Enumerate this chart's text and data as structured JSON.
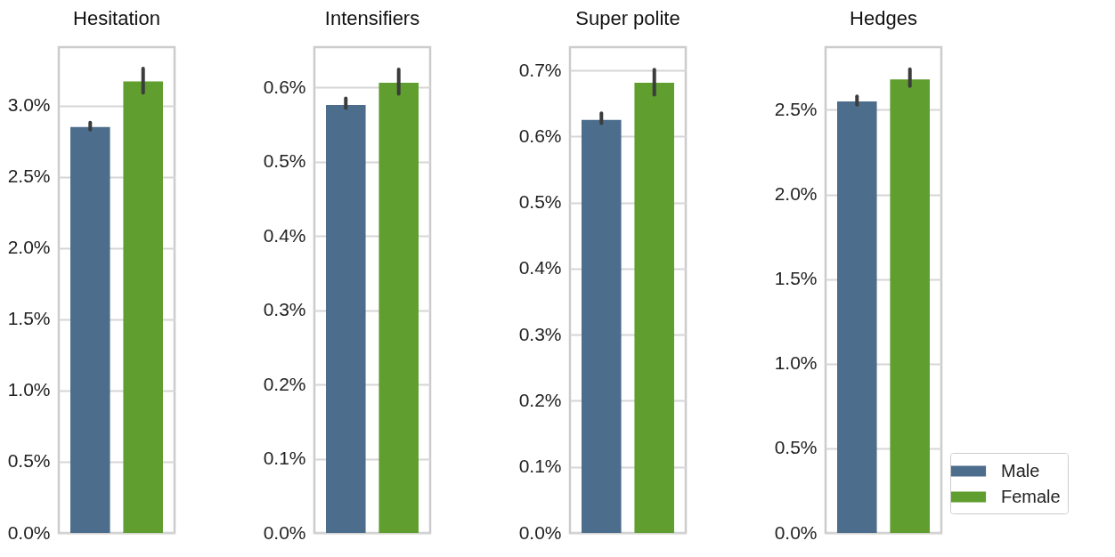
{
  "chart_data": [
    {
      "type": "bar",
      "title": "Hesitation",
      "categories": [
        null
      ],
      "grid": "y",
      "tick_labels": "y",
      "legend": false,
      "ylim": [
        0,
        3.41
      ],
      "yticks": [
        {
          "value": 0,
          "label": "0.0%"
        },
        {
          "value": 0.5,
          "label": "0.5%"
        },
        {
          "value": 1.0,
          "label": "1.0%"
        },
        {
          "value": 1.5,
          "label": "1.5%"
        },
        {
          "value": 2.0,
          "label": "2.0%"
        },
        {
          "value": 2.5,
          "label": "2.5%"
        },
        {
          "value": 3.0,
          "label": "3.0%"
        }
      ],
      "series": [
        {
          "color": "#4c6d8c",
          "values": [
            2.85
          ],
          "errors": [
            [
              2.83,
              2.88
            ]
          ]
        },
        {
          "color": "#5f9e2f",
          "values": [
            3.17
          ],
          "errors": [
            [
              3.09,
              3.26
            ]
          ]
        }
      ]
    },
    {
      "type": "bar",
      "title": "Intensifiers",
      "categories": [
        null
      ],
      "grid": "y",
      "tick_labels": "y",
      "legend": false,
      "ylim": [
        0,
        0.654
      ],
      "yticks": [
        {
          "value": 0,
          "label": "0.0%"
        },
        {
          "value": 0.1,
          "label": "0.1%"
        },
        {
          "value": 0.2,
          "label": "0.2%"
        },
        {
          "value": 0.3,
          "label": "0.3%"
        },
        {
          "value": 0.4,
          "label": "0.4%"
        },
        {
          "value": 0.5,
          "label": "0.5%"
        },
        {
          "value": 0.6,
          "label": "0.6%"
        }
      ],
      "series": [
        {
          "color": "#4c6d8c",
          "values": [
            0.576
          ],
          "errors": [
            [
              0.572,
              0.585
            ]
          ]
        },
        {
          "color": "#5f9e2f",
          "values": [
            0.606
          ],
          "errors": [
            [
              0.591,
              0.624
            ]
          ]
        }
      ]
    },
    {
      "type": "bar",
      "title": "Super polite",
      "categories": [
        null
      ],
      "grid": "y",
      "tick_labels": "y",
      "legend": false,
      "ylim": [
        0,
        0.735
      ],
      "yticks": [
        {
          "value": 0,
          "label": "0.0%"
        },
        {
          "value": 0.1,
          "label": "0.1%"
        },
        {
          "value": 0.2,
          "label": "0.2%"
        },
        {
          "value": 0.3,
          "label": "0.3%"
        },
        {
          "value": 0.4,
          "label": "0.4%"
        },
        {
          "value": 0.5,
          "label": "0.5%"
        },
        {
          "value": 0.6,
          "label": "0.6%"
        },
        {
          "value": 0.7,
          "label": "0.7%"
        }
      ],
      "series": [
        {
          "color": "#4c6d8c",
          "values": [
            0.625
          ],
          "errors": [
            [
              0.62,
              0.635
            ]
          ]
        },
        {
          "color": "#5f9e2f",
          "values": [
            0.681
          ],
          "errors": [
            [
              0.663,
              0.701
            ]
          ]
        }
      ]
    },
    {
      "type": "bar",
      "title": "Hedges",
      "categories": [
        null
      ],
      "grid": "y",
      "tick_labels": "y",
      "legend": "bottom right",
      "ylim": [
        0,
        2.87
      ],
      "yticks": [
        {
          "value": 0,
          "label": "0.0%"
        },
        {
          "value": 0.5,
          "label": "0.5%"
        },
        {
          "value": 1.0,
          "label": "1.0%"
        },
        {
          "value": 1.5,
          "label": "1.5%"
        },
        {
          "value": 2.0,
          "label": "2.0%"
        },
        {
          "value": 2.5,
          "label": "2.5%"
        }
      ],
      "series": [
        {
          "name": "Male",
          "color": "#4c6d8c",
          "values": [
            2.55
          ],
          "errors": [
            [
              2.53,
              2.58
            ]
          ]
        },
        {
          "name": "Female",
          "color": "#5f9e2f",
          "values": [
            2.68
          ],
          "errors": [
            [
              2.64,
              2.74
            ]
          ]
        }
      ]
    }
  ]
}
